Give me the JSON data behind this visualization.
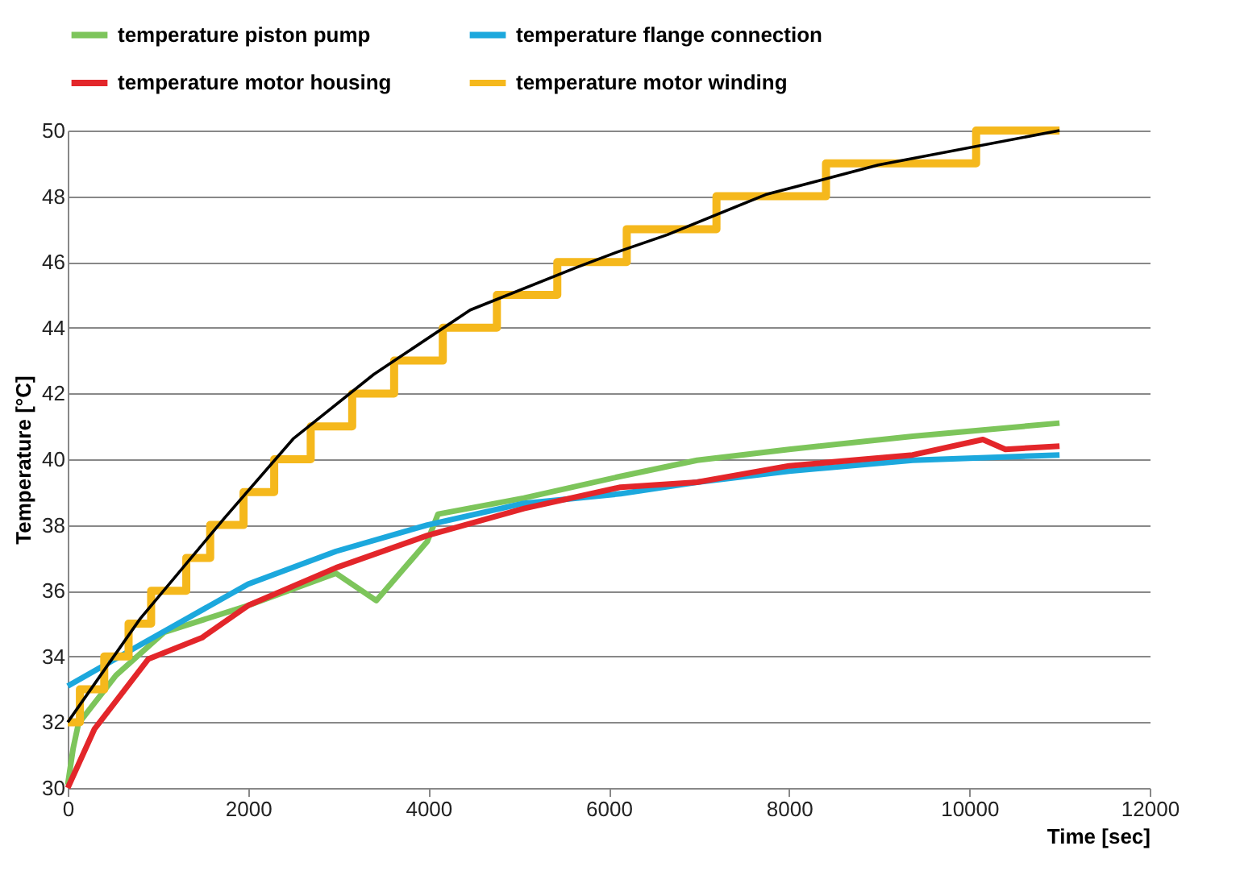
{
  "chart_data": {
    "type": "line",
    "xlabel": "Time [sec]",
    "ylabel": "Temperature [°C]",
    "xlim": [
      0,
      12000
    ],
    "xticks": [
      0,
      2000,
      4000,
      6000,
      8000,
      10000,
      12000
    ],
    "ylim": [
      30,
      50
    ],
    "yticks": [
      30,
      32,
      34,
      36,
      38,
      40,
      42,
      44,
      46,
      48,
      50
    ],
    "grid": "y",
    "legend": "top",
    "series": [
      {
        "name": "temperature piston pump",
        "color": "#7dc55b",
        "x": [
          0,
          60,
          119,
          536,
          1071,
          2000,
          2976,
          3422,
          3988,
          4107,
          5060,
          6131,
          6980,
          8000,
          9370,
          11000
        ],
        "values": [
          30.1,
          31.2,
          31.96,
          33.43,
          34.74,
          35.55,
          36.53,
          35.7,
          37.5,
          38.33,
          38.82,
          39.48,
          39.97,
          40.3,
          40.7,
          41.1
        ]
      },
      {
        "name": "temperature flange connection",
        "color": "#1ca8dd",
        "x": [
          0,
          833,
          2000,
          2976,
          3988,
          5060,
          6131,
          6980,
          8000,
          9370,
          11000
        ],
        "values": [
          33.1,
          34.4,
          36.2,
          37.2,
          38.0,
          38.66,
          38.95,
          39.3,
          39.64,
          39.97,
          40.13
        ]
      },
      {
        "name": "temperature motor housing",
        "color": "#e3262a",
        "x": [
          0,
          298,
          893,
          1488,
          2000,
          2976,
          3988,
          5060,
          6131,
          6980,
          8000,
          9370,
          10150,
          10400,
          11000
        ],
        "values": [
          30,
          31.8,
          33.92,
          34.57,
          35.55,
          36.7,
          37.68,
          38.5,
          39.15,
          39.3,
          39.8,
          40.13,
          40.6,
          40.3,
          40.4
        ]
      },
      {
        "name": "temperature motor winding",
        "color": "#f5b81c",
        "type": "step",
        "x": [
          0,
          135,
          405,
          675,
          925,
          1315,
          1580,
          1950,
          2290,
          2695,
          3155,
          3620,
          4160,
          4760,
          5430,
          6200,
          7195,
          8410,
          10075,
          11000
        ],
        "values": [
          32,
          33,
          34,
          35,
          36,
          37,
          38,
          39,
          40,
          41,
          42,
          43,
          44,
          45,
          46,
          47,
          48,
          49,
          50,
          50
        ]
      },
      {
        "color": "#000000",
        "x": [
          0,
          804,
          1726,
          2500,
          3393,
          4464,
          5655,
          6131,
          6650,
          7740,
          8990,
          11000
        ],
        "values": [
          32,
          35.15,
          38.17,
          40.62,
          42.58,
          44.54,
          45.85,
          46.34,
          46.83,
          48.05,
          48.95,
          50
        ]
      }
    ]
  }
}
